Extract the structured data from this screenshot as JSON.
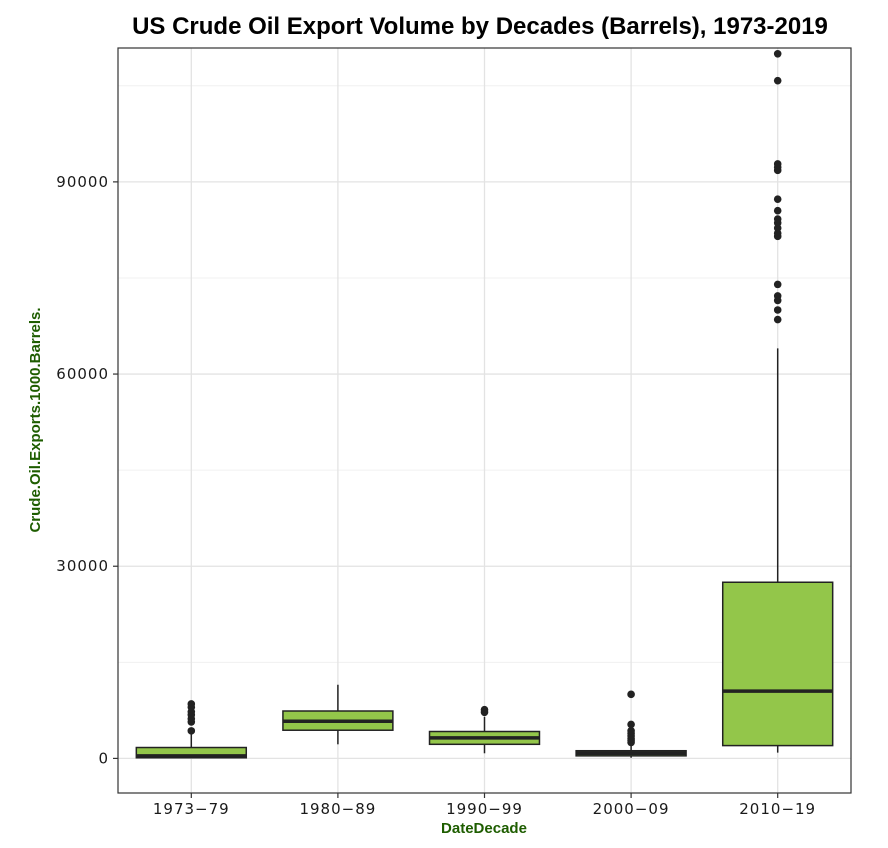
{
  "chart_data": {
    "type": "box",
    "title": "US Crude Oil Export Volume by Decades (Barrels), 1973-2019",
    "xlabel": "DateDecade",
    "ylabel": "Crude.Oil.Exports.1000.Barrels.",
    "categories": [
      "1973-79",
      "1980-89",
      "1990-99",
      "2000-09",
      "2010-19"
    ],
    "y_ticks": [
      "0",
      "30000",
      "60000",
      "90000"
    ],
    "y_tick_values": [
      0,
      30000,
      60000,
      90000
    ],
    "ylim": [
      -5400,
      110900
    ],
    "grid": true,
    "box_fill": "#93c64a",
    "line_color": "#222222",
    "boxes": [
      {
        "category": "1973-79",
        "min": 0,
        "q1": 100,
        "median": 400,
        "q3": 1700,
        "max": 4000,
        "outliers": [
          4300,
          5700,
          6200,
          6800,
          7300,
          8000,
          8500
        ]
      },
      {
        "category": "1980-89",
        "min": 2200,
        "q1": 4400,
        "median": 5800,
        "q3": 7400,
        "max": 11500,
        "outliers": []
      },
      {
        "category": "1990-99",
        "min": 800,
        "q1": 2200,
        "median": 3200,
        "q3": 4200,
        "max": 6500,
        "outliers": [
          7200,
          7600
        ]
      },
      {
        "category": "2000-09",
        "min": 100,
        "q1": 400,
        "median": 800,
        "q3": 1200,
        "max": 2200,
        "outliers": [
          2500,
          2800,
          3100,
          3500,
          3900,
          4300,
          5300,
          10000
        ]
      },
      {
        "category": "2010-19",
        "min": 900,
        "q1": 2000,
        "median": 10500,
        "q3": 27500,
        "max": 64000,
        "outliers": [
          68500,
          70000,
          71500,
          72200,
          74000,
          81500,
          82000,
          82800,
          83600,
          84200,
          85500,
          87300,
          91800,
          92300,
          92800,
          105800,
          110000
        ]
      }
    ]
  }
}
